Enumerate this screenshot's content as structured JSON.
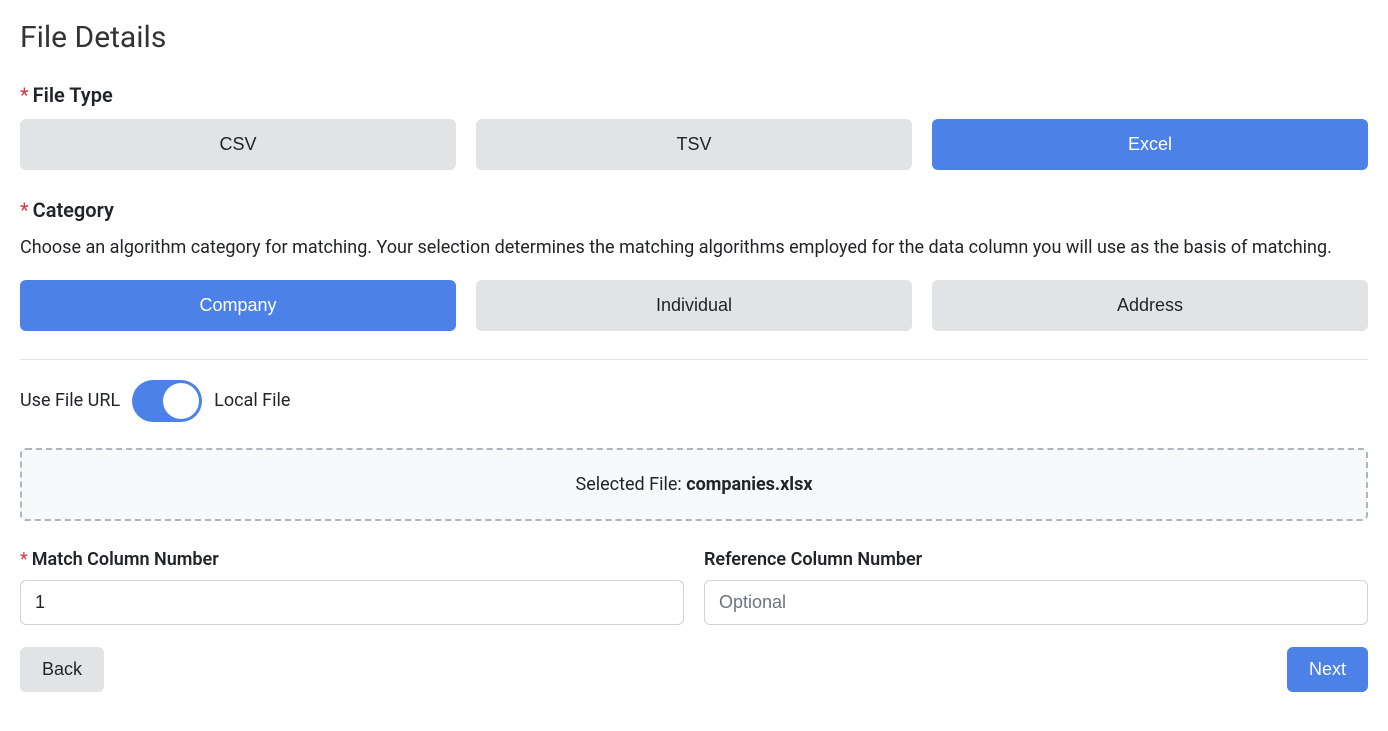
{
  "page_title": "File Details",
  "file_type": {
    "label": "File Type",
    "options": [
      {
        "label": "CSV",
        "selected": false
      },
      {
        "label": "TSV",
        "selected": false
      },
      {
        "label": "Excel",
        "selected": true
      }
    ]
  },
  "category": {
    "label": "Category",
    "description": "Choose an algorithm category for matching. Your selection determines the matching algorithms employed for the data column you will use as the basis of matching.",
    "options": [
      {
        "label": "Company",
        "selected": true
      },
      {
        "label": "Individual",
        "selected": false
      },
      {
        "label": "Address",
        "selected": false
      }
    ]
  },
  "file_source": {
    "left_label": "Use File URL",
    "right_label": "Local File",
    "toggle_on": true
  },
  "selected_file": {
    "prefix": "Selected File: ",
    "filename": "companies.xlsx"
  },
  "match_column": {
    "label": "Match Column Number",
    "value": "1",
    "required": true
  },
  "reference_column": {
    "label": "Reference Column Number",
    "placeholder": "Optional",
    "value": "",
    "required": false
  },
  "nav": {
    "back": "Back",
    "next": "Next"
  },
  "colors": {
    "primary": "#4c81e8",
    "secondary": "#e2e3e5",
    "danger": "#dc3545",
    "border": "#ced4da",
    "background": "#ffffff"
  }
}
